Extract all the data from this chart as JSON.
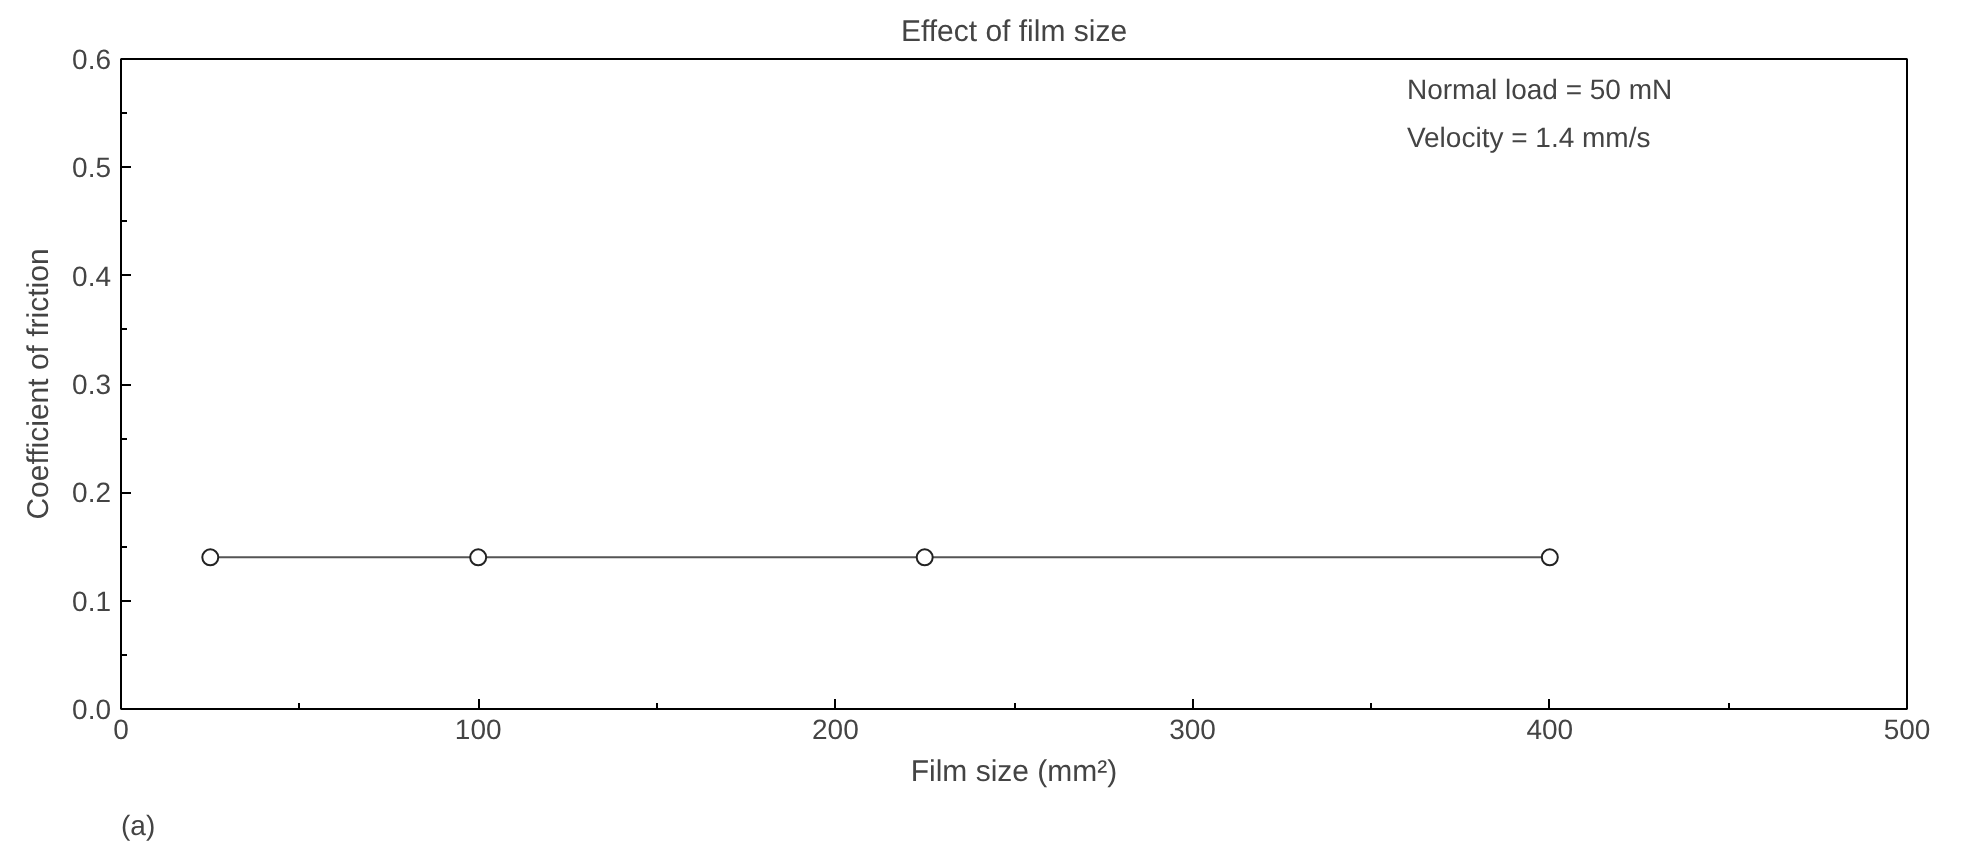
{
  "chart_data": {
    "type": "line",
    "title": "Effect of film size",
    "xlabel": "Film size (mm²)",
    "ylabel": "Coefficient of friction",
    "x": [
      25,
      100,
      225,
      400
    ],
    "series": [
      {
        "color": "#555555",
        "values": [
          0.14,
          0.14,
          0.14,
          0.14
        ]
      }
    ],
    "marker": "circle",
    "line_style": "solid",
    "grid": false,
    "xlim": [
      0,
      500
    ],
    "xticks": [
      0,
      100,
      200,
      300,
      400,
      500
    ],
    "ylim": [
      0,
      0.6
    ],
    "yticks": [
      {
        "value": 0,
        "label": "0.0"
      },
      {
        "value": 0.1,
        "label": "0.1"
      },
      {
        "value": 0.2,
        "label": "0.2"
      },
      {
        "value": 0.3,
        "label": "0.3"
      },
      {
        "value": 0.4,
        "label": "0.4"
      },
      {
        "value": 0.5,
        "label": "0.5"
      },
      {
        "value": 0.6,
        "label": "0.6"
      }
    ],
    "annotations": [
      "Normal load = 50 mN",
      "Velocity = 1.4 mm/s",
      "(a)"
    ]
  }
}
